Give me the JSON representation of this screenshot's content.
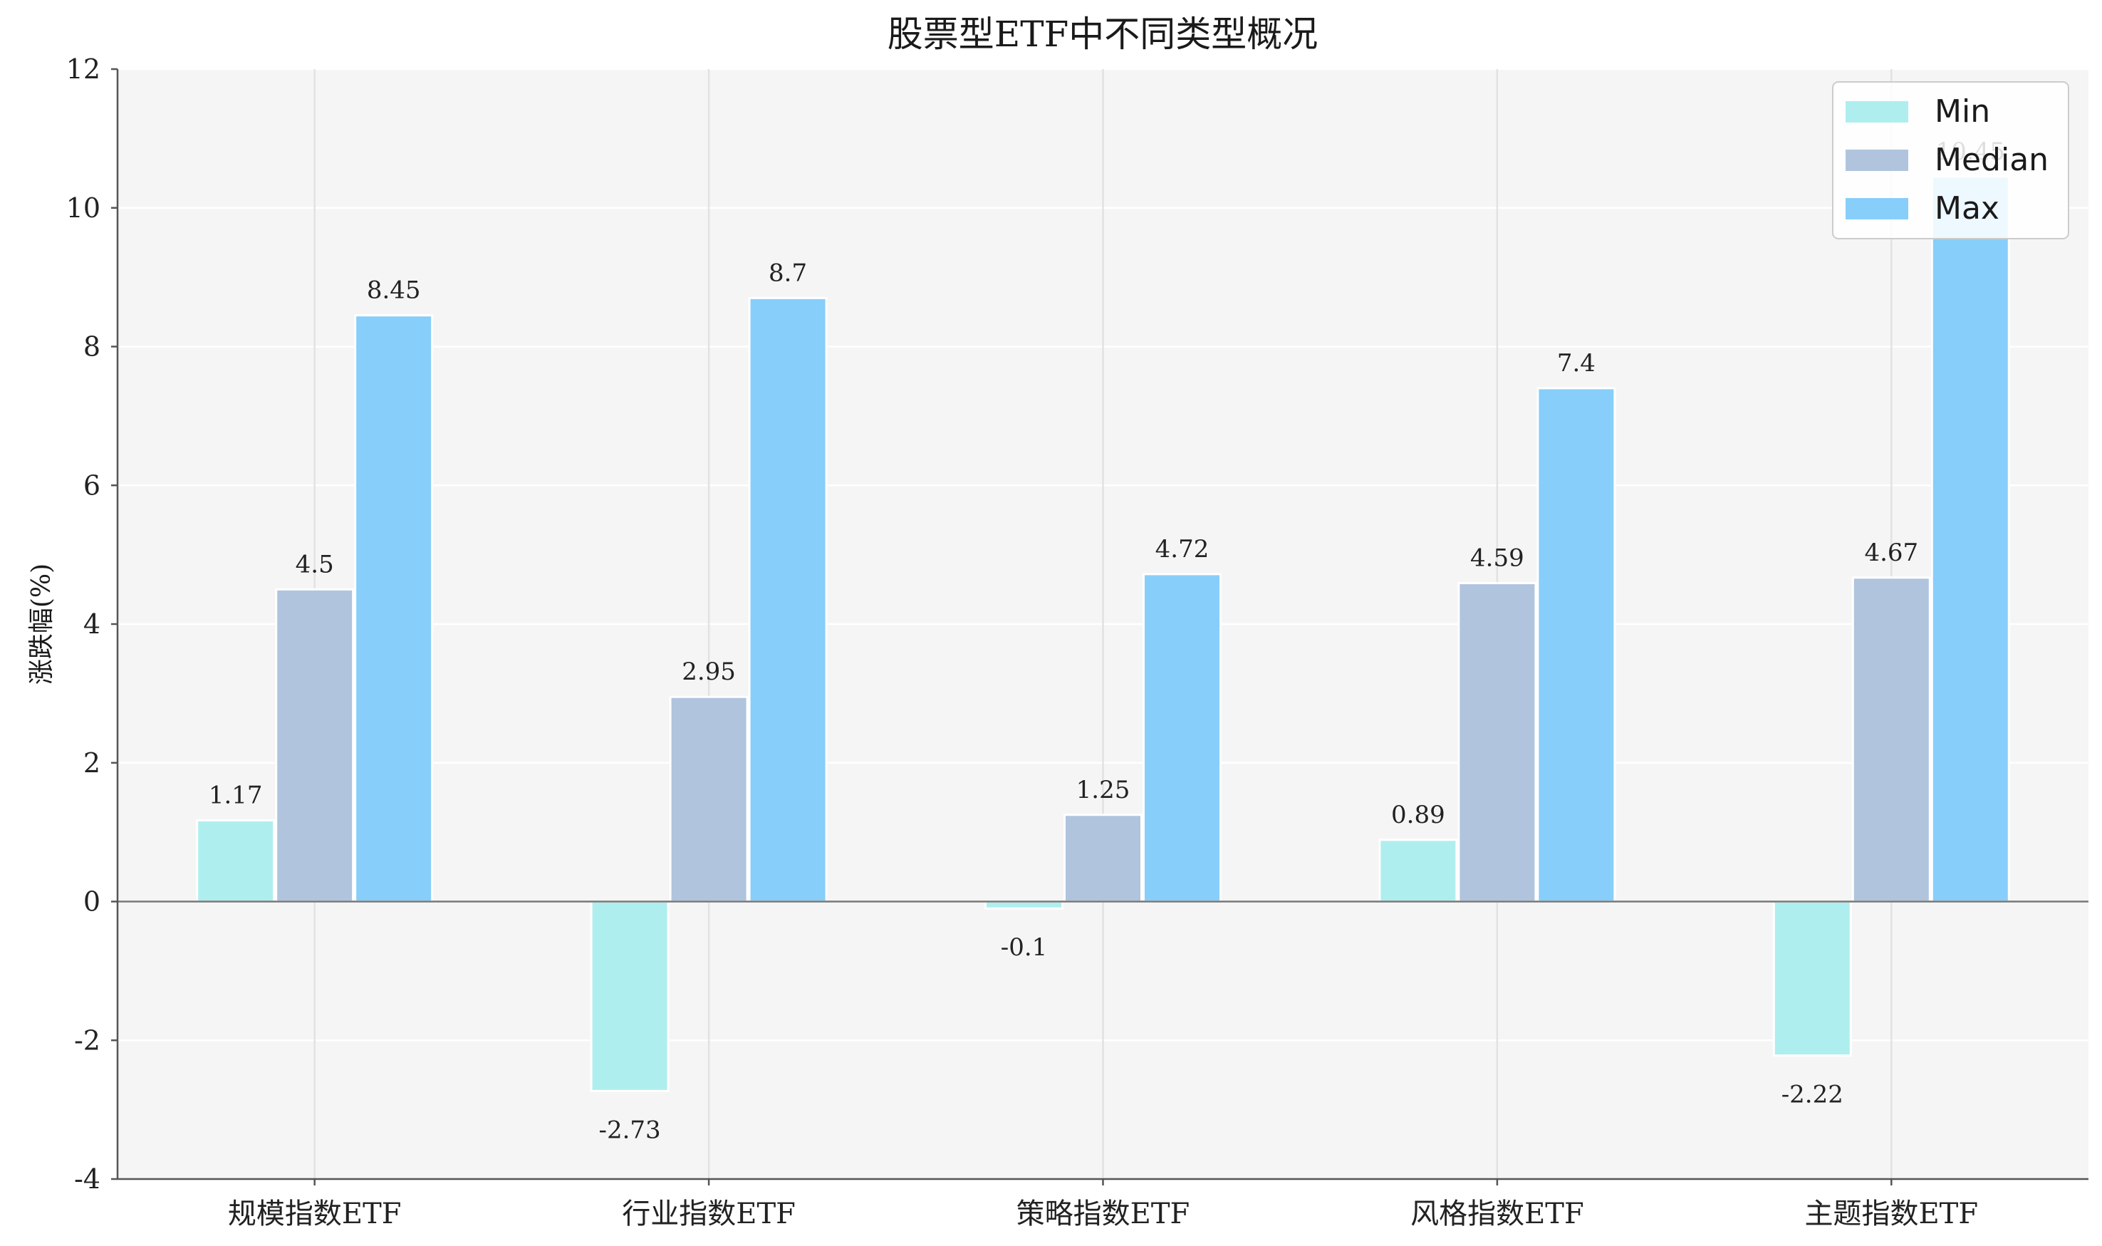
{
  "chart_data": {
    "type": "bar",
    "title": "股票型ETF中不同类型概况",
    "xlabel": "",
    "ylabel": "涨跌幅(%)",
    "ylim": [
      -4,
      12
    ],
    "yticks": [
      -4,
      -2,
      0,
      2,
      4,
      6,
      8,
      10,
      12
    ],
    "categories": [
      "规模指数ETF",
      "行业指数ETF",
      "策略指数ETF",
      "风格指数ETF",
      "主题指数ETF"
    ],
    "series": [
      {
        "name": "Min",
        "values": [
          1.17,
          -2.73,
          -0.1,
          0.89,
          -2.22
        ],
        "labels": [
          "1.17",
          "-2.73",
          "-0.1",
          "0.89",
          "-2.22"
        ],
        "color": "#afeeee"
      },
      {
        "name": "Median",
        "values": [
          4.5,
          2.95,
          1.25,
          4.59,
          4.67
        ],
        "labels": [
          "4.5",
          "2.95",
          "1.25",
          "4.59",
          "4.67"
        ],
        "color": "#b0c4de"
      },
      {
        "name": "Max",
        "values": [
          8.45,
          8.7,
          4.72,
          7.4,
          10.45
        ],
        "labels": [
          "8.45",
          "8.7",
          "4.72",
          "7.4",
          "10.45"
        ],
        "color": "#87cefa"
      }
    ],
    "grid": true,
    "legend": "top-right",
    "background": "#f5f5f5"
  }
}
